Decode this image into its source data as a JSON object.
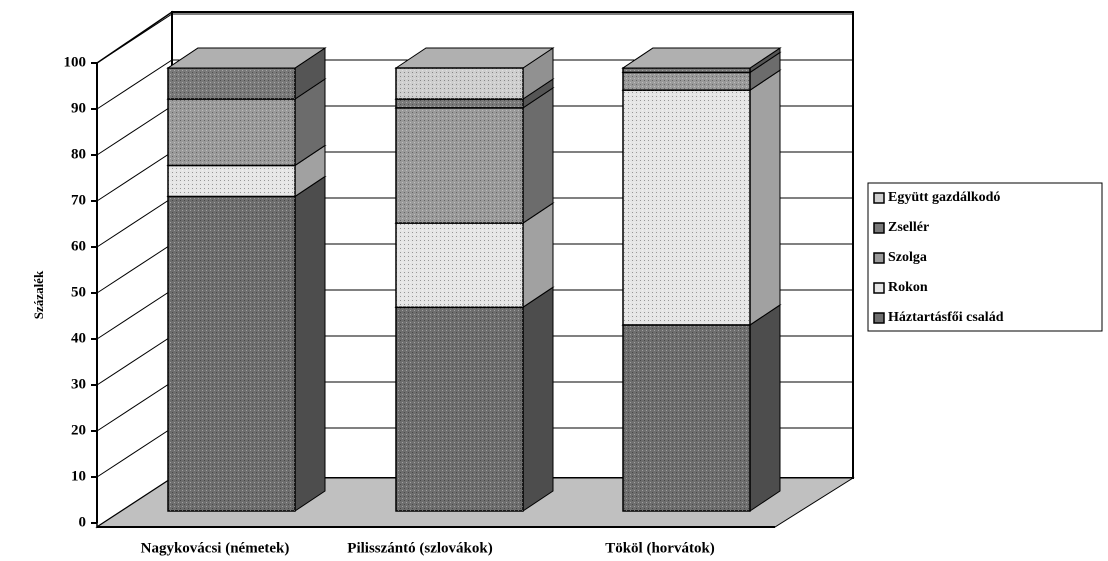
{
  "chart_data": {
    "type": "bar",
    "stacked": true,
    "three_d": true,
    "y_label": "Százalék",
    "categories": [
      "Nagykovácsi (németek)",
      "Pilisszántó (szlovákok)",
      "Tököl (horvátok)"
    ],
    "series": [
      {
        "name": "Háztartásfői család",
        "color": "#6e6e6e",
        "values": [
          71,
          46,
          42
        ]
      },
      {
        "name": "Rokon",
        "color": "#e6e6e6",
        "values": [
          7,
          19,
          53
        ]
      },
      {
        "name": "Szolga",
        "color": "#9a9a9a",
        "values": [
          15,
          26,
          4
        ]
      },
      {
        "name": "Zsellér",
        "color": "#7a7a7a",
        "values": [
          7,
          2,
          1
        ]
      },
      {
        "name": "Együtt gazdálkodó",
        "color": "#cfcfcf",
        "values": [
          0,
          7,
          0
        ]
      }
    ],
    "ylim": [
      0,
      100
    ],
    "yticks": [
      0,
      10,
      20,
      30,
      40,
      50,
      60,
      70,
      80,
      90,
      100
    ],
    "grid": true,
    "legend": "right"
  }
}
